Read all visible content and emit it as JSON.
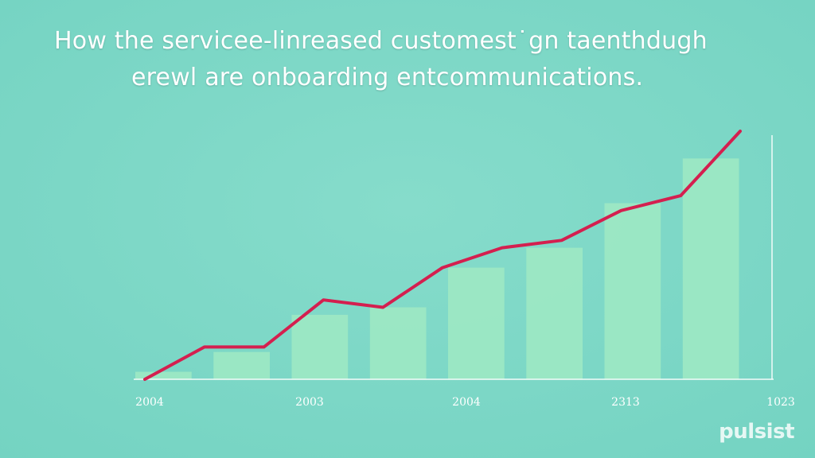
{
  "title": {
    "line1": "How the servicee-linreased customest˙gn taenthdugh",
    "line2": "erewl are onboarding entcommunications."
  },
  "watermark": "pulsist",
  "colors": {
    "background": "#7ed9c7",
    "bar": "#9ce8c4",
    "line": "#d41f4f",
    "axis": "#ffffff",
    "text": "#ffffff"
  },
  "chart_data": {
    "type": "bar",
    "overlay": "line",
    "grid": false,
    "legend": "none",
    "x_tick_labels": [
      "2004",
      "2003",
      "2004",
      "2313",
      "1023"
    ],
    "values": [
      3,
      11,
      26,
      29,
      45,
      53,
      71,
      89
    ],
    "line_values": [
      0,
      13,
      13,
      32,
      29,
      45,
      53,
      56,
      68,
      74,
      100
    ],
    "ylim": [
      0,
      100
    ]
  }
}
